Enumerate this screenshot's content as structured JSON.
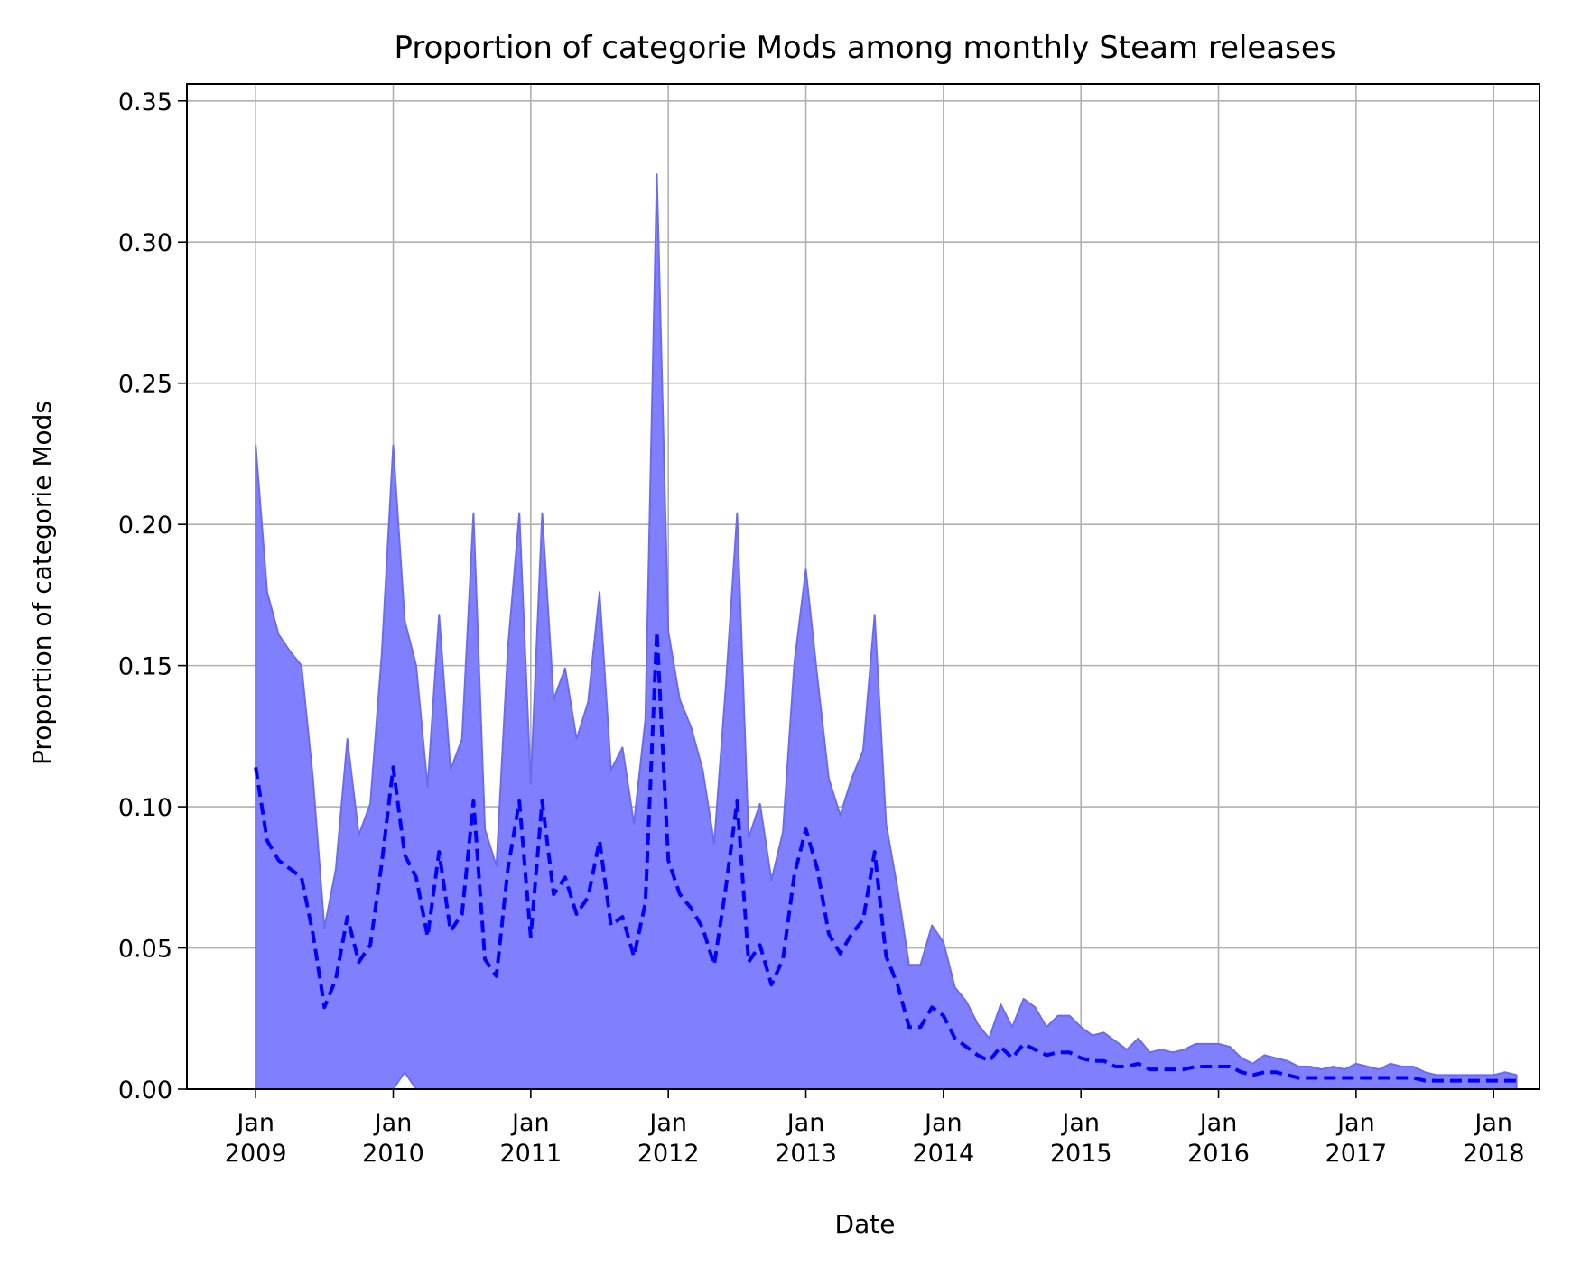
{
  "chart_data": {
    "type": "area",
    "title": "Proportion of categorie Mods among monthly Steam releases",
    "xlabel": "Date",
    "ylabel": "Proportion of categorie Mods",
    "xlim": [
      "2008-07",
      "2018-05"
    ],
    "ylim": [
      0,
      0.356
    ],
    "grid": true,
    "x_ticks": [
      {
        "date": "2009-01",
        "line1": "Jan",
        "line2": "2009"
      },
      {
        "date": "2010-01",
        "line1": "Jan",
        "line2": "2010"
      },
      {
        "date": "2011-01",
        "line1": "Jan",
        "line2": "2011"
      },
      {
        "date": "2012-01",
        "line1": "Jan",
        "line2": "2012"
      },
      {
        "date": "2013-01",
        "line1": "Jan",
        "line2": "2013"
      },
      {
        "date": "2014-01",
        "line1": "Jan",
        "line2": "2014"
      },
      {
        "date": "2015-01",
        "line1": "Jan",
        "line2": "2015"
      },
      {
        "date": "2016-01",
        "line1": "Jan",
        "line2": "2016"
      },
      {
        "date": "2017-01",
        "line1": "Jan",
        "line2": "2017"
      },
      {
        "date": "2018-01",
        "line1": "Jan",
        "line2": "2018"
      }
    ],
    "y_ticks": [
      {
        "value": 0.0,
        "label": "0.00"
      },
      {
        "value": 0.05,
        "label": "0.05"
      },
      {
        "value": 0.1,
        "label": "0.10"
      },
      {
        "value": 0.15,
        "label": "0.15"
      },
      {
        "value": 0.2,
        "label": "0.20"
      },
      {
        "value": 0.25,
        "label": "0.25"
      },
      {
        "value": 0.3,
        "label": "0.30"
      },
      {
        "value": 0.35,
        "label": "0.35"
      }
    ],
    "colors": {
      "band_fill": "#8080ff",
      "band_edge": "#6b6bf0",
      "line": "#0000ff",
      "grid": "#b0b0b0"
    },
    "series": [
      {
        "role": "proportion",
        "style": "dashed",
        "x": [
          "2009-01",
          "2009-02",
          "2009-03",
          "2009-04",
          "2009-05",
          "2009-06",
          "2009-07",
          "2009-08",
          "2009-09",
          "2009-10",
          "2009-11",
          "2009-12",
          "2010-01",
          "2010-02",
          "2010-03",
          "2010-04",
          "2010-05",
          "2010-06",
          "2010-07",
          "2010-08",
          "2010-09",
          "2010-10",
          "2010-11",
          "2010-12",
          "2011-01",
          "2011-02",
          "2011-03",
          "2011-04",
          "2011-05",
          "2011-06",
          "2011-07",
          "2011-08",
          "2011-09",
          "2011-10",
          "2011-11",
          "2011-12",
          "2012-01",
          "2012-02",
          "2012-03",
          "2012-04",
          "2012-05",
          "2012-06",
          "2012-07",
          "2012-08",
          "2012-09",
          "2012-10",
          "2012-11",
          "2012-12",
          "2013-01",
          "2013-02",
          "2013-03",
          "2013-04",
          "2013-05",
          "2013-06",
          "2013-07",
          "2013-08",
          "2013-09",
          "2013-10",
          "2013-11",
          "2013-12",
          "2014-01",
          "2014-02",
          "2014-03",
          "2014-04",
          "2014-05",
          "2014-06",
          "2014-07",
          "2014-08",
          "2014-09",
          "2014-10",
          "2014-11",
          "2014-12",
          "2015-01",
          "2015-02",
          "2015-03",
          "2015-04",
          "2015-05",
          "2015-06",
          "2015-07",
          "2015-08",
          "2015-09",
          "2015-10",
          "2015-11",
          "2015-12",
          "2016-01",
          "2016-02",
          "2016-03",
          "2016-04",
          "2016-05",
          "2016-06",
          "2016-07",
          "2016-08",
          "2016-09",
          "2016-10",
          "2016-11",
          "2016-12",
          "2017-01",
          "2017-02",
          "2017-03",
          "2017-04",
          "2017-05",
          "2017-06",
          "2017-07",
          "2017-08",
          "2017-09",
          "2017-10",
          "2017-11",
          "2017-12",
          "2018-01",
          "2018-02",
          "2018-03"
        ],
        "y": [
          0.114,
          0.088,
          0.081,
          0.078,
          0.075,
          0.055,
          0.029,
          0.039,
          0.061,
          0.045,
          0.051,
          0.08,
          0.114,
          0.083,
          0.075,
          0.054,
          0.084,
          0.056,
          0.062,
          0.102,
          0.046,
          0.04,
          0.078,
          0.102,
          0.054,
          0.102,
          0.069,
          0.075,
          0.062,
          0.068,
          0.088,
          0.058,
          0.061,
          0.047,
          0.066,
          0.162,
          0.081,
          0.069,
          0.064,
          0.057,
          0.044,
          0.071,
          0.102,
          0.045,
          0.051,
          0.037,
          0.046,
          0.076,
          0.092,
          0.078,
          0.055,
          0.048,
          0.055,
          0.06,
          0.084,
          0.047,
          0.037,
          0.022,
          0.022,
          0.029,
          0.026,
          0.018,
          0.015,
          0.012,
          0.01,
          0.015,
          0.011,
          0.016,
          0.014,
          0.012,
          0.013,
          0.013,
          0.011,
          0.01,
          0.01,
          0.008,
          0.008,
          0.009,
          0.007,
          0.007,
          0.007,
          0.007,
          0.008,
          0.008,
          0.008,
          0.008,
          0.006,
          0.005,
          0.006,
          0.006,
          0.005,
          0.004,
          0.004,
          0.004,
          0.004,
          0.004,
          0.004,
          0.004,
          0.004,
          0.004,
          0.004,
          0.004,
          0.003,
          0.003,
          0.003,
          0.003,
          0.003,
          0.003,
          0.003,
          0.003,
          0.003
        ]
      },
      {
        "role": "band_upper",
        "x": [
          "2009-01",
          "2009-02",
          "2009-03",
          "2009-04",
          "2009-05",
          "2009-06",
          "2009-07",
          "2009-08",
          "2009-09",
          "2009-10",
          "2009-11",
          "2009-12",
          "2010-01",
          "2010-02",
          "2010-03",
          "2010-04",
          "2010-05",
          "2010-06",
          "2010-07",
          "2010-08",
          "2010-09",
          "2010-10",
          "2010-11",
          "2010-12",
          "2011-01",
          "2011-02",
          "2011-03",
          "2011-04",
          "2011-05",
          "2011-06",
          "2011-07",
          "2011-08",
          "2011-09",
          "2011-10",
          "2011-11",
          "2011-12",
          "2012-01",
          "2012-02",
          "2012-03",
          "2012-04",
          "2012-05",
          "2012-06",
          "2012-07",
          "2012-08",
          "2012-09",
          "2012-10",
          "2012-11",
          "2012-12",
          "2013-01",
          "2013-02",
          "2013-03",
          "2013-04",
          "2013-05",
          "2013-06",
          "2013-07",
          "2013-08",
          "2013-09",
          "2013-10",
          "2013-11",
          "2013-12",
          "2014-01",
          "2014-02",
          "2014-03",
          "2014-04",
          "2014-05",
          "2014-06",
          "2014-07",
          "2014-08",
          "2014-09",
          "2014-10",
          "2014-11",
          "2014-12",
          "2015-01",
          "2015-02",
          "2015-03",
          "2015-04",
          "2015-05",
          "2015-06",
          "2015-07",
          "2015-08",
          "2015-09",
          "2015-10",
          "2015-11",
          "2015-12",
          "2016-01",
          "2016-02",
          "2016-03",
          "2016-04",
          "2016-05",
          "2016-06",
          "2016-07",
          "2016-08",
          "2016-09",
          "2016-10",
          "2016-11",
          "2016-12",
          "2017-01",
          "2017-02",
          "2017-03",
          "2017-04",
          "2017-05",
          "2017-06",
          "2017-07",
          "2017-08",
          "2017-09",
          "2017-10",
          "2017-11",
          "2017-12",
          "2018-01",
          "2018-02",
          "2018-03"
        ],
        "y": [
          0.228,
          0.176,
          0.161,
          0.155,
          0.15,
          0.11,
          0.057,
          0.078,
          0.124,
          0.09,
          0.101,
          0.154,
          0.228,
          0.166,
          0.15,
          0.107,
          0.168,
          0.113,
          0.124,
          0.204,
          0.092,
          0.079,
          0.156,
          0.204,
          0.108,
          0.204,
          0.138,
          0.149,
          0.124,
          0.137,
          0.176,
          0.113,
          0.121,
          0.094,
          0.131,
          0.324,
          0.162,
          0.138,
          0.128,
          0.113,
          0.087,
          0.142,
          0.204,
          0.089,
          0.101,
          0.074,
          0.091,
          0.151,
          0.184,
          0.146,
          0.11,
          0.097,
          0.11,
          0.12,
          0.168,
          0.094,
          0.071,
          0.044,
          0.044,
          0.058,
          0.052,
          0.036,
          0.031,
          0.023,
          0.018,
          0.03,
          0.022,
          0.032,
          0.029,
          0.022,
          0.026,
          0.026,
          0.022,
          0.019,
          0.02,
          0.017,
          0.014,
          0.018,
          0.013,
          0.014,
          0.013,
          0.014,
          0.016,
          0.016,
          0.016,
          0.015,
          0.011,
          0.009,
          0.012,
          0.011,
          0.01,
          0.008,
          0.008,
          0.007,
          0.008,
          0.007,
          0.009,
          0.008,
          0.007,
          0.009,
          0.008,
          0.008,
          0.006,
          0.005,
          0.005,
          0.005,
          0.005,
          0.005,
          0.005,
          0.006,
          0.005
        ]
      },
      {
        "role": "band_lower",
        "x": [
          "2009-01",
          "2009-02",
          "2009-03",
          "2009-04",
          "2009-05",
          "2009-06",
          "2009-07",
          "2009-08",
          "2009-09",
          "2009-10",
          "2009-11",
          "2009-12",
          "2010-01",
          "2010-02",
          "2010-03",
          "2010-04",
          "2010-05",
          "2010-06",
          "2010-07",
          "2010-08",
          "2010-09",
          "2010-10",
          "2010-11",
          "2010-12",
          "2011-01",
          "2011-02",
          "2011-03",
          "2011-04",
          "2011-05",
          "2011-06",
          "2011-07",
          "2011-08",
          "2011-09",
          "2011-10",
          "2011-11",
          "2011-12",
          "2012-01",
          "2012-02",
          "2012-03",
          "2012-04",
          "2012-05",
          "2012-06",
          "2012-07",
          "2012-08",
          "2012-09",
          "2012-10",
          "2012-11",
          "2012-12",
          "2013-01",
          "2013-02",
          "2013-03",
          "2013-04",
          "2013-05",
          "2013-06",
          "2013-07",
          "2013-08",
          "2013-09",
          "2013-10",
          "2013-11",
          "2013-12",
          "2014-01",
          "2014-02",
          "2014-03",
          "2014-04",
          "2014-05",
          "2014-06",
          "2014-07",
          "2014-08",
          "2014-09",
          "2014-10",
          "2014-11",
          "2014-12",
          "2015-01",
          "2015-02",
          "2015-03",
          "2015-04",
          "2015-05",
          "2015-06",
          "2015-07",
          "2015-08",
          "2015-09",
          "2015-10",
          "2015-11",
          "2015-12",
          "2016-01",
          "2016-02",
          "2016-03",
          "2016-04",
          "2016-05",
          "2016-06",
          "2016-07",
          "2016-08",
          "2016-09",
          "2016-10",
          "2016-11",
          "2016-12",
          "2017-01",
          "2017-02",
          "2017-03",
          "2017-04",
          "2017-05",
          "2017-06",
          "2017-07",
          "2017-08",
          "2017-09",
          "2017-10",
          "2017-11",
          "2017-12",
          "2018-01",
          "2018-02",
          "2018-03"
        ],
        "y": [
          0,
          0,
          0,
          0,
          0,
          0,
          0,
          0,
          0,
          0,
          0,
          0,
          0,
          0.006,
          0,
          0,
          0,
          0,
          0,
          0,
          0,
          0,
          0,
          0,
          0,
          0,
          0,
          0,
          0,
          0,
          0,
          0,
          0,
          0,
          0,
          0,
          0,
          0,
          0,
          0,
          0,
          0,
          0,
          0,
          0,
          0,
          0,
          0,
          0,
          0,
          0,
          0,
          0,
          0,
          0,
          0,
          0,
          0,
          0,
          0,
          0,
          0,
          0,
          0,
          0,
          0,
          0,
          0,
          0,
          0,
          0,
          0,
          0,
          0,
          0,
          0,
          0,
          0,
          0,
          0,
          0,
          0,
          0,
          0,
          0,
          0,
          0,
          0,
          0,
          0,
          0,
          0,
          0,
          0,
          0,
          0,
          0,
          0,
          0,
          0,
          0,
          0,
          0,
          0,
          0,
          0,
          0,
          0,
          0,
          0,
          0
        ]
      }
    ]
  }
}
